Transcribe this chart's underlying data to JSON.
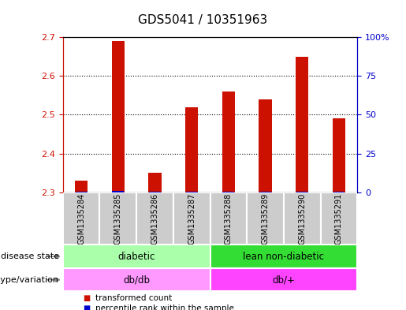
{
  "title": "GDS5041 / 10351963",
  "samples": [
    "GSM1335284",
    "GSM1335285",
    "GSM1335286",
    "GSM1335287",
    "GSM1335288",
    "GSM1335289",
    "GSM1335290",
    "GSM1335291"
  ],
  "transformed_counts": [
    2.33,
    2.69,
    2.35,
    2.52,
    2.56,
    2.54,
    2.65,
    2.49
  ],
  "percentile_ranks": [
    5,
    8,
    3,
    5,
    6,
    5,
    7,
    5
  ],
  "ylim": [
    2.3,
    2.7
  ],
  "y2lim": [
    0,
    100
  ],
  "yticks": [
    2.3,
    2.4,
    2.5,
    2.6,
    2.7
  ],
  "y2ticks": [
    0,
    25,
    50,
    75,
    100
  ],
  "y2ticklabels": [
    "0",
    "25",
    "50",
    "75",
    "100%"
  ],
  "bar_color": "#cc1100",
  "percentile_color": "#0000cc",
  "bar_width": 0.35,
  "disease_state_groups": [
    {
      "label": "diabetic",
      "start": 0,
      "end": 4,
      "color": "#aaffaa"
    },
    {
      "label": "lean non-diabetic",
      "start": 4,
      "end": 8,
      "color": "#33dd33"
    }
  ],
  "genotype_groups": [
    {
      "label": "db/db",
      "start": 0,
      "end": 4,
      "color": "#ff99ff"
    },
    {
      "label": "db/+",
      "start": 4,
      "end": 8,
      "color": "#ff44ff"
    }
  ],
  "disease_state_label": "disease state",
  "genotype_label": "genotype/variation",
  "legend_items": [
    {
      "label": "transformed count",
      "color": "#cc1100"
    },
    {
      "label": "percentile rank within the sample",
      "color": "#0000cc"
    }
  ],
  "plot_bg_color": "#ffffff",
  "sample_box_color": "#cccccc",
  "grid_color": "black",
  "left_tick_color": "#cc1100",
  "right_tick_color": "#0000cc",
  "title_fontsize": 11
}
